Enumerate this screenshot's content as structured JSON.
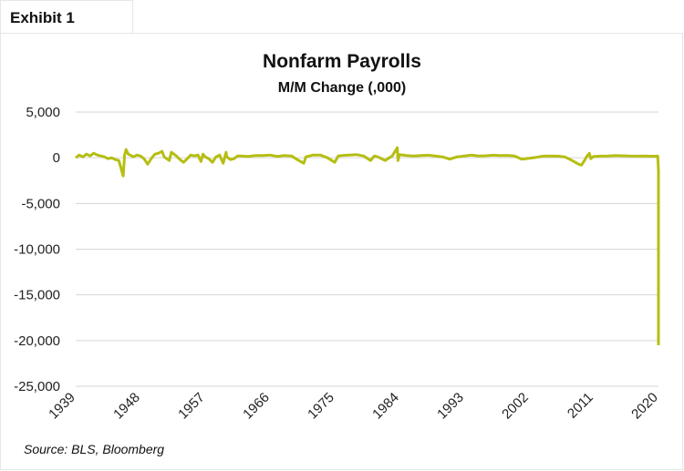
{
  "exhibit_label": "Exhibit 1",
  "source": "Source: BLS, Bloomberg",
  "chart_data": {
    "type": "line",
    "title": "Nonfarm Payrolls",
    "subtitle": "M/M Change (,000)",
    "xlabel": "",
    "ylabel": "",
    "xlim": [
      1939,
      2020
    ],
    "ylim": [
      -25000,
      5000
    ],
    "grid": true,
    "y_ticks": [
      5000,
      0,
      -5000,
      -10000,
      -15000,
      -20000,
      -25000
    ],
    "y_tick_labels": [
      "5,000",
      "0",
      "-5,000",
      "-10,000",
      "-15,000",
      "-20,000",
      "-25,000"
    ],
    "x_ticks": [
      1939,
      1948,
      1957,
      1966,
      1975,
      1984,
      1993,
      2002,
      2011,
      2020
    ],
    "x_tick_labels": [
      "1939",
      "1948",
      "1957",
      "1966",
      "1975",
      "1984",
      "1993",
      "2002",
      "2011",
      "2020"
    ],
    "line_color": "#b5be12",
    "series": [
      {
        "name": "Nonfarm Payrolls M/M Change",
        "points": [
          [
            1939,
            0
          ],
          [
            1939.5,
            300
          ],
          [
            1940,
            100
          ],
          [
            1940.5,
            400
          ],
          [
            1941,
            200
          ],
          [
            1941.5,
            500
          ],
          [
            1942,
            300
          ],
          [
            1942.5,
            200
          ],
          [
            1943,
            100
          ],
          [
            1943.5,
            -100
          ],
          [
            1944,
            0
          ],
          [
            1944.5,
            -200
          ],
          [
            1945,
            -300
          ],
          [
            1945.6,
            -2000
          ],
          [
            1945.8,
            300
          ],
          [
            1946,
            900
          ],
          [
            1946.3,
            400
          ],
          [
            1946.8,
            200
          ],
          [
            1947,
            100
          ],
          [
            1947.5,
            300
          ],
          [
            1948,
            200
          ],
          [
            1948.5,
            -100
          ],
          [
            1949,
            -700
          ],
          [
            1949.5,
            -100
          ],
          [
            1950,
            400
          ],
          [
            1950.5,
            500
          ],
          [
            1951,
            700
          ],
          [
            1951.3,
            100
          ],
          [
            1952,
            -300
          ],
          [
            1952.3,
            600
          ],
          [
            1953,
            200
          ],
          [
            1953.5,
            -200
          ],
          [
            1954,
            -500
          ],
          [
            1954.5,
            -100
          ],
          [
            1955,
            300
          ],
          [
            1955.5,
            200
          ],
          [
            1956,
            300
          ],
          [
            1956.4,
            -400
          ],
          [
            1956.7,
            400
          ],
          [
            1957,
            100
          ],
          [
            1957.5,
            -100
          ],
          [
            1958,
            -500
          ],
          [
            1958.5,
            100
          ],
          [
            1959,
            300
          ],
          [
            1959.5,
            -600
          ],
          [
            1959.9,
            600
          ],
          [
            1960,
            100
          ],
          [
            1960.5,
            -200
          ],
          [
            1961,
            -100
          ],
          [
            1961.5,
            200
          ],
          [
            1962,
            200
          ],
          [
            1963,
            150
          ],
          [
            1964,
            250
          ],
          [
            1965,
            250
          ],
          [
            1966,
            300
          ],
          [
            1967,
            150
          ],
          [
            1968,
            250
          ],
          [
            1969,
            200
          ],
          [
            1970,
            -300
          ],
          [
            1970.7,
            -600
          ],
          [
            1971,
            100
          ],
          [
            1972,
            300
          ],
          [
            1973,
            300
          ],
          [
            1974,
            0
          ],
          [
            1975,
            -500
          ],
          [
            1975.5,
            200
          ],
          [
            1976,
            250
          ],
          [
            1977,
            300
          ],
          [
            1978,
            350
          ],
          [
            1979,
            200
          ],
          [
            1980,
            -300
          ],
          [
            1980.5,
            200
          ],
          [
            1981,
            100
          ],
          [
            1982,
            -300
          ],
          [
            1983,
            200
          ],
          [
            1983.7,
            1100
          ],
          [
            1983.8,
            -300
          ],
          [
            1984,
            350
          ],
          [
            1985,
            250
          ],
          [
            1986,
            200
          ],
          [
            1987,
            250
          ],
          [
            1988,
            280
          ],
          [
            1989,
            200
          ],
          [
            1990,
            100
          ],
          [
            1991,
            -150
          ],
          [
            1992,
            100
          ],
          [
            1993,
            200
          ],
          [
            1994,
            300
          ],
          [
            1995,
            200
          ],
          [
            1996,
            220
          ],
          [
            1997,
            280
          ],
          [
            1998,
            250
          ],
          [
            1999,
            260
          ],
          [
            2000,
            200
          ],
          [
            2001,
            -150
          ],
          [
            2002,
            -50
          ],
          [
            2003,
            50
          ],
          [
            2004,
            180
          ],
          [
            2005,
            200
          ],
          [
            2006,
            180
          ],
          [
            2007,
            100
          ],
          [
            2008,
            -300
          ],
          [
            2008.9,
            -700
          ],
          [
            2009.3,
            -800
          ],
          [
            2009.8,
            -200
          ],
          [
            2010,
            100
          ],
          [
            2010.4,
            500
          ],
          [
            2010.6,
            -100
          ],
          [
            2011,
            150
          ],
          [
            2012,
            180
          ],
          [
            2013,
            200
          ],
          [
            2014,
            250
          ],
          [
            2015,
            220
          ],
          [
            2016,
            190
          ],
          [
            2017,
            180
          ],
          [
            2018,
            200
          ],
          [
            2019,
            170
          ],
          [
            2019.9,
            180
          ],
          [
            2020,
            -1400
          ],
          [
            2020,
            -20500
          ]
        ]
      }
    ]
  }
}
